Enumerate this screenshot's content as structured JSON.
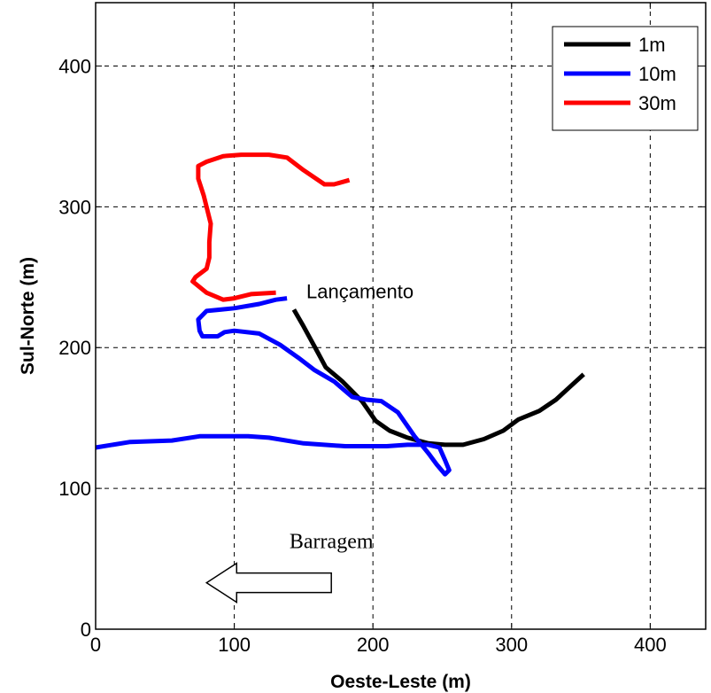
{
  "chart_data": {
    "type": "line",
    "title": "",
    "xlabel": "Oeste-Leste (m)",
    "ylabel": "Sul-Norte (m)",
    "xlim": [
      0,
      440
    ],
    "ylim": [
      0,
      445
    ],
    "xticks": [
      0,
      100,
      200,
      300,
      400
    ],
    "yticks": [
      0,
      100,
      200,
      300,
      400
    ],
    "grid": true,
    "legend_position": "top-right",
    "series": [
      {
        "name": "1m",
        "color": "#000000",
        "points": [
          [
            143,
            227
          ],
          [
            150,
            215
          ],
          [
            160,
            197
          ],
          [
            166,
            186
          ],
          [
            178,
            176
          ],
          [
            192,
            162
          ],
          [
            202,
            148
          ],
          [
            212,
            141
          ],
          [
            225,
            136
          ],
          [
            240,
            132
          ],
          [
            252,
            131
          ],
          [
            265,
            131
          ],
          [
            280,
            135
          ],
          [
            294,
            141
          ],
          [
            305,
            149
          ],
          [
            320,
            155
          ],
          [
            332,
            163
          ],
          [
            342,
            172
          ],
          [
            352,
            181
          ]
        ]
      },
      {
        "name": "10m",
        "color": "#0000ff",
        "points": [
          [
            0,
            129
          ],
          [
            25,
            133
          ],
          [
            55,
            134
          ],
          [
            75,
            137
          ],
          [
            95,
            137
          ],
          [
            110,
            137
          ],
          [
            125,
            136
          ],
          [
            150,
            132
          ],
          [
            180,
            130
          ],
          [
            210,
            130
          ],
          [
            225,
            131
          ],
          [
            240,
            131
          ],
          [
            248,
            129
          ],
          [
            252,
            120
          ],
          [
            255,
            113
          ],
          [
            252,
            110
          ],
          [
            246,
            117
          ],
          [
            240,
            125
          ],
          [
            230,
            137
          ],
          [
            218,
            154
          ],
          [
            206,
            162
          ],
          [
            195,
            163
          ],
          [
            185,
            165
          ],
          [
            172,
            176
          ],
          [
            158,
            184
          ],
          [
            146,
            193
          ],
          [
            133,
            202
          ],
          [
            118,
            210
          ],
          [
            100,
            212
          ],
          [
            93,
            211
          ],
          [
            88,
            208
          ],
          [
            77,
            208
          ],
          [
            75,
            212
          ],
          [
            74,
            220
          ],
          [
            80,
            226
          ],
          [
            90,
            227
          ],
          [
            100,
            228
          ],
          [
            118,
            231
          ],
          [
            130,
            234
          ],
          [
            138,
            235
          ]
        ]
      },
      {
        "name": "30m",
        "color": "#ff0000",
        "points": [
          [
            130,
            239
          ],
          [
            112,
            238
          ],
          [
            100,
            235
          ],
          [
            92,
            234
          ],
          [
            80,
            239
          ],
          [
            70,
            247
          ],
          [
            72,
            250
          ],
          [
            80,
            256
          ],
          [
            82,
            264
          ],
          [
            82,
            275
          ],
          [
            83,
            288
          ],
          [
            78,
            308
          ],
          [
            74,
            320
          ],
          [
            74,
            329
          ],
          [
            80,
            332
          ],
          [
            92,
            336
          ],
          [
            105,
            337
          ],
          [
            125,
            337
          ],
          [
            138,
            335
          ],
          [
            150,
            326
          ],
          [
            165,
            316
          ],
          [
            172,
            316
          ],
          [
            183,
            319
          ]
        ]
      }
    ],
    "annotations": [
      {
        "text": "Lançamento",
        "x": 152,
        "y": 240
      },
      {
        "text": "Barragem",
        "x": 170,
        "y": 55,
        "arrow": "left"
      }
    ]
  }
}
